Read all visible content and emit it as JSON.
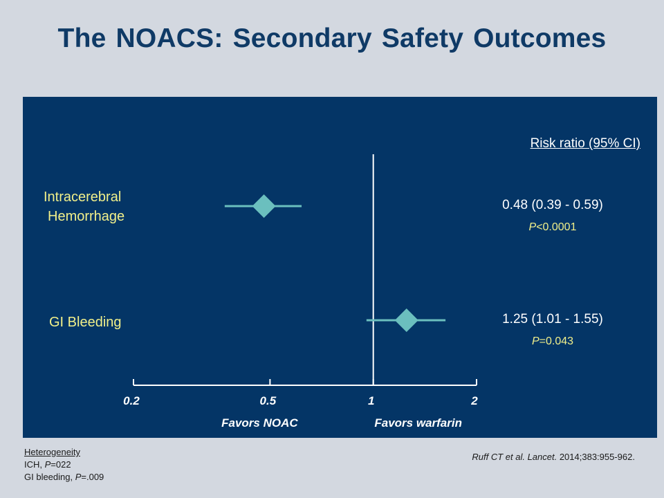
{
  "title": "The NOACS: Secondary Safety Outcomes",
  "colors": {
    "background": "#d3d8e0",
    "panel": "#043566",
    "title": "#0f3a66",
    "marker": "#6bbfbe",
    "label_yellow": "#f2f08a",
    "axis": "#ffffff"
  },
  "chart_data": {
    "type": "forest",
    "x_scale": "log",
    "xlim": [
      0.2,
      2
    ],
    "x_ticks": [
      "0.2",
      "0.5",
      "1",
      "2"
    ],
    "reference_line": 1,
    "column_header": "Risk ratio (95% CI)",
    "favors_left": "Favors NOAC",
    "favors_right": "Favors warfarin",
    "rows": [
      {
        "label_line1": "Intracerebral",
        "label_line2": "Hemorrhage",
        "estimate": 0.48,
        "ci_low": 0.39,
        "ci_high": 0.59,
        "rr_text": "0.48 (0.39 - 0.59)",
        "p_prefix": "P",
        "p_value": "<0.0001"
      },
      {
        "label_line1": "GI Bleeding",
        "estimate": 1.25,
        "ci_low": 1.01,
        "ci_high": 1.55,
        "rr_text": "1.25 (1.01 - 1.55)",
        "p_prefix": "P",
        "p_value": "=0.043"
      }
    ]
  },
  "footer": {
    "heterogeneity_header": "Heterogeneity",
    "ich_prefix": "ICH, ",
    "ich_p": "P",
    "ich_value": "=022",
    "gi_prefix": "GI bleeding, ",
    "gi_p": "P",
    "gi_value": "=.009",
    "citation_authors": "Ruff CT et al. Lancet.",
    "citation_details": " 2014;383:955-962."
  }
}
